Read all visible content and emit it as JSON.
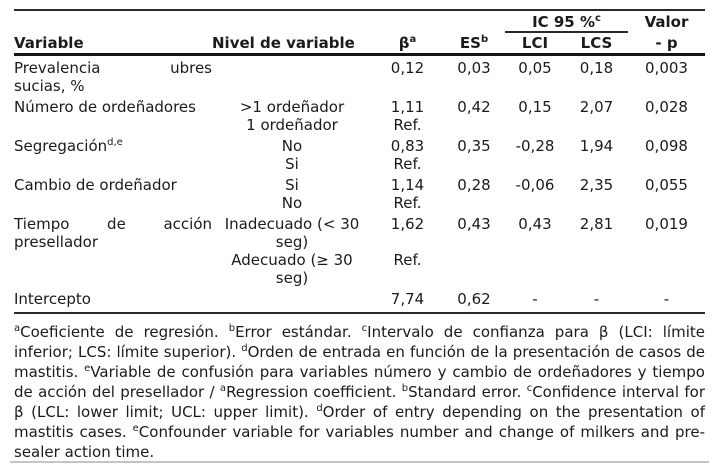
{
  "table": {
    "header": {
      "variable": "Variable",
      "nivel": "Nivel de variable",
      "beta": "β",
      "beta_sup": "a",
      "es": "ES",
      "es_sup": "b",
      "ic_group": "IC 95 %",
      "ic_group_sup": "c",
      "lci": "LCI",
      "lcs": "LCS",
      "valor_line1": "Valor",
      "valor_line2": "- p"
    },
    "rows": [
      {
        "variable_l1": "Prevalencia ubres",
        "variable_l2": "sucias, %",
        "beta": "0,12",
        "es": "0,03",
        "lci": "0,05",
        "lcs": "0,18",
        "p": "0,003"
      },
      {
        "variable": "Número de ordeñadores",
        "nivel": ">1 ordeñador",
        "beta": "1,11",
        "es": "0,42",
        "lci": "0,15",
        "lcs": "2,07",
        "p": "0,028"
      },
      {
        "nivel": "1 ordeñador",
        "beta": "Ref."
      },
      {
        "variable": "Segregación",
        "variable_sup": "d,e",
        "nivel": "No",
        "beta": "0,83",
        "es": "0,35",
        "lci": "-0,28",
        "lcs": "1,94",
        "p": "0,098"
      },
      {
        "nivel": "Si",
        "beta": "Ref."
      },
      {
        "variable": "Cambio de ordeñador",
        "nivel": "Si",
        "beta": "1,14",
        "es": "0,28",
        "lci": "-0,06",
        "lcs": "2,35",
        "p": "0,055"
      },
      {
        "nivel": "No",
        "beta": "Ref."
      },
      {
        "variable_l1": "Tiempo de acción",
        "variable_l2": "presellador",
        "nivel_l1": "Inadecuado (< 30",
        "nivel_l2": "seg)",
        "beta": "1,62",
        "es": "0,43",
        "lci": "0,43",
        "lcs": "2,81",
        "p": "0,019"
      },
      {
        "nivel_l1": "Adecuado (≥ 30",
        "nivel_l2": "seg)",
        "beta": "Ref."
      },
      {
        "variable": "Intercepto",
        "beta": "7,74",
        "es": "0,62",
        "lci": "-",
        "lcs": "-",
        "p": "-"
      }
    ]
  },
  "footnotes": [
    {
      "sup": "a",
      "text": "Coeficiente de regresión. "
    },
    {
      "sup": "b",
      "text": "Error estándar. "
    },
    {
      "sup": "c",
      "text": "Intervalo de confianza para β (LCI: límite inferior; LCS: límite superior). "
    },
    {
      "sup": "d",
      "text": "Orden de entrada en función de la presentación de casos de mastitis. "
    },
    {
      "sup": "e",
      "text": "Variable de confusión para variables número y cambio de ordeñadores y tiempo de acción del presellador / "
    },
    {
      "sup": "a",
      "text": "Regression coefficient. "
    },
    {
      "sup": "b",
      "text": "Standard error. "
    },
    {
      "sup": "c",
      "text": "Confidence interval for β (LCL: lower limit; UCL: upper limit). "
    },
    {
      "sup": "d",
      "text": "Order of entry depending on the presentation of mastitis cases. "
    },
    {
      "sup": "e",
      "text": "Confounder variable for variables number and change of milkers and pre-sealer action time."
    }
  ]
}
